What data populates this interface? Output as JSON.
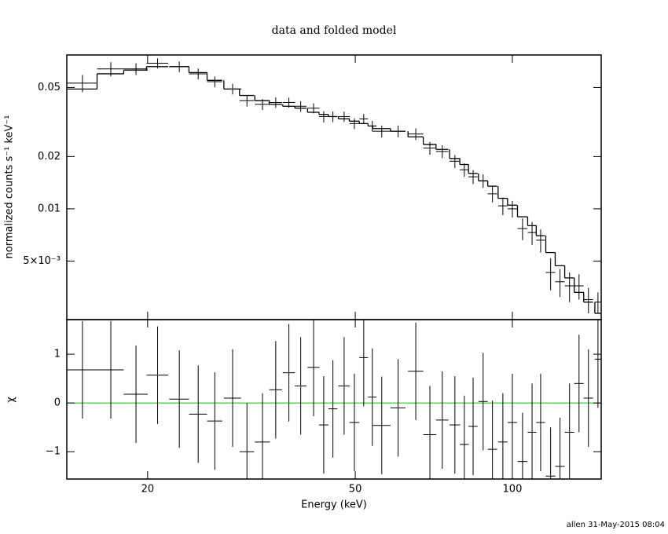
{
  "chart_data": [
    {
      "type": "scatter",
      "title": "data and folded model",
      "ylabel": "normalized counts s⁻¹ keV⁻¹",
      "xscale": "log",
      "yscale": "log",
      "xlim": [
        14,
        148
      ],
      "ylim": [
        0.0023,
        0.077
      ],
      "xticks": [
        20,
        50,
        100
      ],
      "yticks": [
        {
          "value": 0.005,
          "label": "5×10⁻³"
        },
        0.01,
        0.02,
        0.05
      ],
      "x": [
        15.0,
        17.0,
        19.0,
        20.9,
        23.0,
        25.0,
        26.9,
        29.1,
        31.0,
        33.2,
        35.2,
        37.3,
        39.3,
        41.6,
        43.5,
        45.3,
        47.6,
        49.8,
        51.9,
        53.9,
        56.2,
        60.4,
        65.3,
        69.5,
        73.4,
        77.6,
        80.9,
        84.1,
        87.9,
        91.6,
        95.9,
        100,
        104.6,
        109.1,
        113.3,
        118.4,
        123.4,
        128.7,
        134.2,
        139.9,
        145.9
      ],
      "x_err": [
        1.0,
        1.0,
        1.0,
        1.0,
        1.0,
        1.0,
        0.9,
        1.1,
        1.0,
        1.1,
        1.0,
        1.0,
        1.0,
        1.1,
        0.9,
        0.9,
        1.2,
        1.1,
        1.0,
        1.0,
        2.2,
        2.0,
        2.2,
        2.0,
        2.0,
        1.8,
        1.6,
        1.7,
        1.8,
        1.9,
        2.0,
        2.1,
        2.3,
        2.1,
        2.2,
        2.5,
        2.6,
        2.7,
        2.8,
        2.9,
        2.0
      ],
      "data": {
        "color": "#000000",
        "values": [
          0.053,
          0.064,
          0.064,
          0.069,
          0.066,
          0.06,
          0.054,
          0.049,
          0.042,
          0.04,
          0.041,
          0.041,
          0.039,
          0.038,
          0.034,
          0.034,
          0.034,
          0.031,
          0.033,
          0.03,
          0.028,
          0.028,
          0.027,
          0.0224,
          0.0214,
          0.0188,
          0.0168,
          0.0153,
          0.0145,
          0.0122,
          0.0104,
          0.01,
          0.0077,
          0.0073,
          0.0066,
          0.0043,
          0.0038,
          0.0036,
          0.0036,
          0.003,
          0.0029
        ],
        "errors": [
          0.006,
          0.006,
          0.005,
          0.0046,
          0.0046,
          0.0043,
          0.0039,
          0.0034,
          0.0032,
          0.0029,
          0.0028,
          0.0027,
          0.0027,
          0.0025,
          0.0025,
          0.0024,
          0.0023,
          0.0022,
          0.0022,
          0.0021,
          0.0022,
          0.0022,
          0.0021,
          0.0019,
          0.0018,
          0.0016,
          0.0015,
          0.0014,
          0.0013,
          0.0013,
          0.0012,
          0.0011,
          0.0011,
          0.0011,
          0.001,
          0.0009,
          0.0007,
          0.0007,
          0.0006,
          0.0005,
          0.0004
        ]
      },
      "model": {
        "color": "#000000",
        "values": [
          0.049,
          0.06,
          0.063,
          0.066,
          0.066,
          0.061,
          0.055,
          0.049,
          0.045,
          0.042,
          0.04,
          0.039,
          0.038,
          0.036,
          0.035,
          0.034,
          0.033,
          0.032,
          0.031,
          0.03,
          0.029,
          0.028,
          0.026,
          0.0235,
          0.022,
          0.0195,
          0.018,
          0.016,
          0.0145,
          0.0135,
          0.0115,
          0.0105,
          0.009,
          0.008,
          0.007,
          0.0056,
          0.0047,
          0.004,
          0.0033,
          0.0029,
          0.0025
        ]
      }
    },
    {
      "type": "residual",
      "ylabel": "χ",
      "xlabel": "Energy (keV)",
      "xscale": "log",
      "xlim": [
        14,
        148
      ],
      "ylim": [
        -1.56,
        1.71
      ],
      "xticks": [
        20,
        50,
        100
      ],
      "yticks": [
        {
          "value": -1,
          "label": "−1"
        },
        0,
        1
      ],
      "color": "#000000",
      "zero_line_color": "#00cc00",
      "values": [
        0.68,
        0.68,
        0.18,
        0.57,
        0.08,
        -0.23,
        -0.37,
        0.1,
        -1.0,
        -0.8,
        0.27,
        0.62,
        0.35,
        0.73,
        -0.45,
        -0.12,
        0.35,
        -0.4,
        0.93,
        0.12,
        -0.46,
        -0.1,
        0.65,
        -0.65,
        -0.35,
        -0.45,
        -0.85,
        -0.48,
        0.03,
        -0.95,
        -0.8,
        -0.4,
        -1.2,
        -0.6,
        -0.4,
        -1.5,
        -1.3,
        -0.6,
        0.4,
        0.1,
        0.9
      ],
      "errors": [
        1,
        1,
        1,
        1,
        1,
        1,
        1,
        1,
        1,
        1,
        1,
        1,
        1,
        1,
        1,
        1,
        1,
        1,
        1,
        1,
        1,
        1,
        1,
        1,
        1,
        1,
        1,
        1,
        1,
        1,
        1,
        1,
        1,
        1,
        1,
        1,
        1,
        1,
        1,
        1,
        1
      ]
    }
  ],
  "footer": "allen 31-May-2015 08:04"
}
